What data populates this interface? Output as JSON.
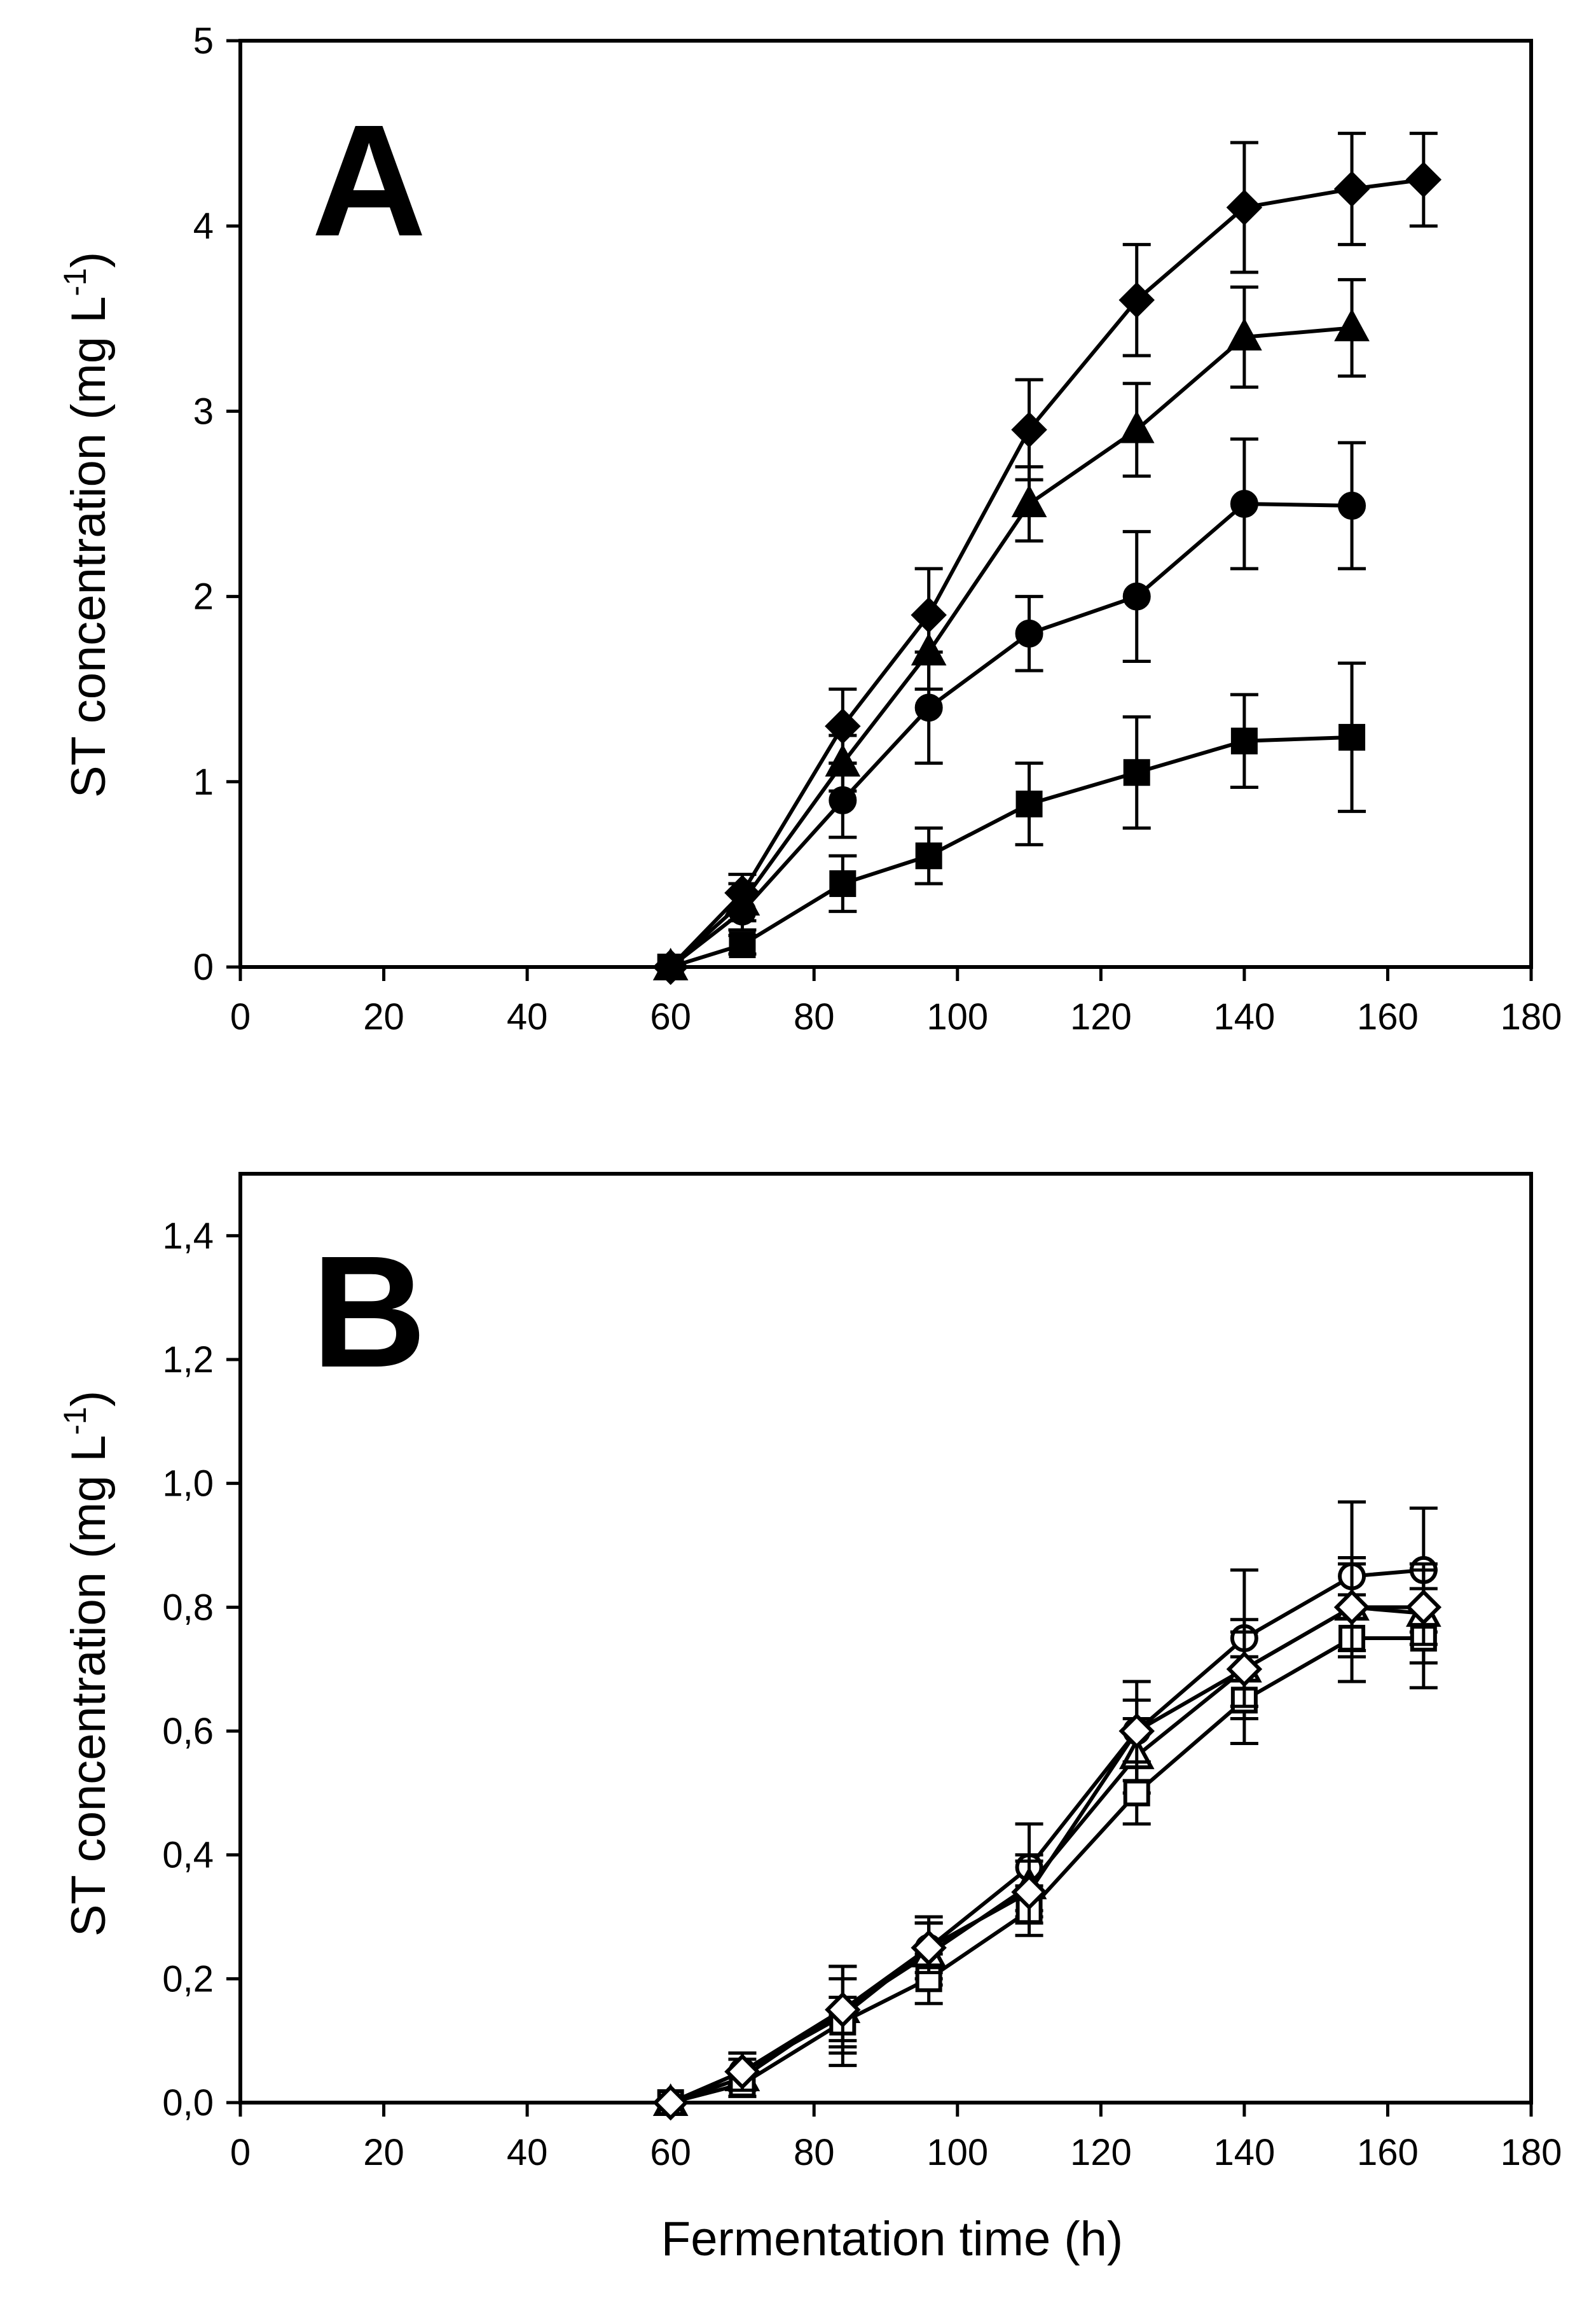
{
  "figure": {
    "xlabel": "Fermentation time (h)"
  },
  "chart_data": [
    {
      "type": "line",
      "panel": "A",
      "ylabel_main": "ST concentration (mg L",
      "ylabel_sup": "-1",
      "ylabel_close": ")",
      "xlim": [
        0,
        180
      ],
      "ylim": [
        0,
        5
      ],
      "xticks": [
        0,
        20,
        40,
        60,
        80,
        100,
        120,
        140,
        160,
        180
      ],
      "xtick_labels": [
        "0",
        "20",
        "40",
        "60",
        "80",
        "100",
        "120",
        "140",
        "160",
        "180"
      ],
      "yticks": [
        0,
        1,
        2,
        3,
        4,
        5
      ],
      "ytick_labels": [
        "0",
        "1",
        "2",
        "3",
        "4",
        "5"
      ],
      "series": [
        {
          "name": "diamond-filled",
          "marker": "diamond",
          "filled": true,
          "x": [
            60,
            70,
            84,
            96,
            110,
            125,
            140,
            155,
            165
          ],
          "y": [
            0,
            0.4,
            1.3,
            1.9,
            2.9,
            3.6,
            4.1,
            4.2,
            4.25
          ],
          "err": [
            0,
            0.1,
            0.2,
            0.25,
            0.27,
            0.3,
            0.35,
            0.3,
            0.25
          ]
        },
        {
          "name": "triangle-filled",
          "marker": "triangle",
          "filled": true,
          "x": [
            60,
            70,
            84,
            96,
            110,
            125,
            140,
            155
          ],
          "y": [
            0,
            0.35,
            1.1,
            1.7,
            2.5,
            2.9,
            3.4,
            3.45
          ],
          "err": [
            0,
            0.1,
            0.15,
            0.2,
            0.2,
            0.25,
            0.27,
            0.26
          ]
        },
        {
          "name": "circle-filled",
          "marker": "circle",
          "filled": true,
          "x": [
            60,
            70,
            84,
            96,
            110,
            125,
            140,
            155
          ],
          "y": [
            0,
            0.3,
            0.9,
            1.4,
            1.8,
            2.0,
            2.5,
            2.49
          ],
          "err": [
            0,
            0.1,
            0.2,
            0.3,
            0.2,
            0.35,
            0.35,
            0.34
          ]
        },
        {
          "name": "square-filled",
          "marker": "square",
          "filled": true,
          "x": [
            60,
            70,
            84,
            96,
            110,
            125,
            140,
            155
          ],
          "y": [
            0,
            0.12,
            0.45,
            0.6,
            0.88,
            1.05,
            1.22,
            1.24
          ],
          "err": [
            0,
            0.05,
            0.15,
            0.15,
            0.22,
            0.3,
            0.25,
            0.4
          ]
        }
      ]
    },
    {
      "type": "line",
      "panel": "B",
      "ylabel_main": "ST concentration (mg L",
      "ylabel_sup": "-1",
      "ylabel_close": ")",
      "xlim": [
        0,
        180
      ],
      "ylim": [
        0,
        1.5
      ],
      "xticks": [
        0,
        20,
        40,
        60,
        80,
        100,
        120,
        140,
        160,
        180
      ],
      "xtick_labels": [
        "0",
        "20",
        "40",
        "60",
        "80",
        "100",
        "120",
        "140",
        "160",
        "180"
      ],
      "yticks": [
        0,
        0.2,
        0.4,
        0.6,
        0.8,
        1.0,
        1.2,
        1.4
      ],
      "ytick_labels": [
        "0,0",
        "0,2",
        "0,4",
        "0,6",
        "0,8",
        "1,0",
        "1,2",
        "1,4"
      ],
      "series": [
        {
          "name": "circle-open",
          "marker": "circle",
          "filled": false,
          "x": [
            60,
            70,
            84,
            96,
            110,
            125,
            140,
            155,
            165
          ],
          "y": [
            0,
            0.05,
            0.14,
            0.25,
            0.38,
            0.6,
            0.75,
            0.85,
            0.86
          ],
          "err": [
            0,
            0.03,
            0.08,
            0.05,
            0.07,
            0.08,
            0.11,
            0.12,
            0.1
          ]
        },
        {
          "name": "triangle-open",
          "marker": "triangle",
          "filled": false,
          "x": [
            60,
            70,
            84,
            96,
            110,
            125,
            140,
            155,
            165
          ],
          "y": [
            0,
            0.04,
            0.15,
            0.24,
            0.35,
            0.56,
            0.7,
            0.8,
            0.79
          ],
          "err": [
            0,
            0.03,
            0.05,
            0.05,
            0.05,
            0.06,
            0.08,
            0.08,
            0.08
          ]
        },
        {
          "name": "square-open",
          "marker": "square",
          "filled": false,
          "x": [
            60,
            70,
            84,
            96,
            110,
            125,
            140,
            155,
            165
          ],
          "y": [
            0,
            0.03,
            0.13,
            0.2,
            0.31,
            0.5,
            0.65,
            0.75,
            0.75
          ],
          "err": [
            0,
            0.02,
            0.04,
            0.04,
            0.04,
            0.05,
            0.07,
            0.07,
            0.08
          ]
        },
        {
          "name": "diamond-open",
          "marker": "diamond",
          "filled": false,
          "x": [
            60,
            70,
            84,
            96,
            110,
            125,
            140,
            155,
            165
          ],
          "y": [
            0,
            0.05,
            0.15,
            0.25,
            0.34,
            0.6,
            0.7,
            0.8,
            0.8
          ],
          "err": [
            0,
            0.03,
            0.07,
            0.04,
            0.05,
            0.05,
            0.06,
            0.07,
            0.06
          ]
        }
      ]
    }
  ]
}
